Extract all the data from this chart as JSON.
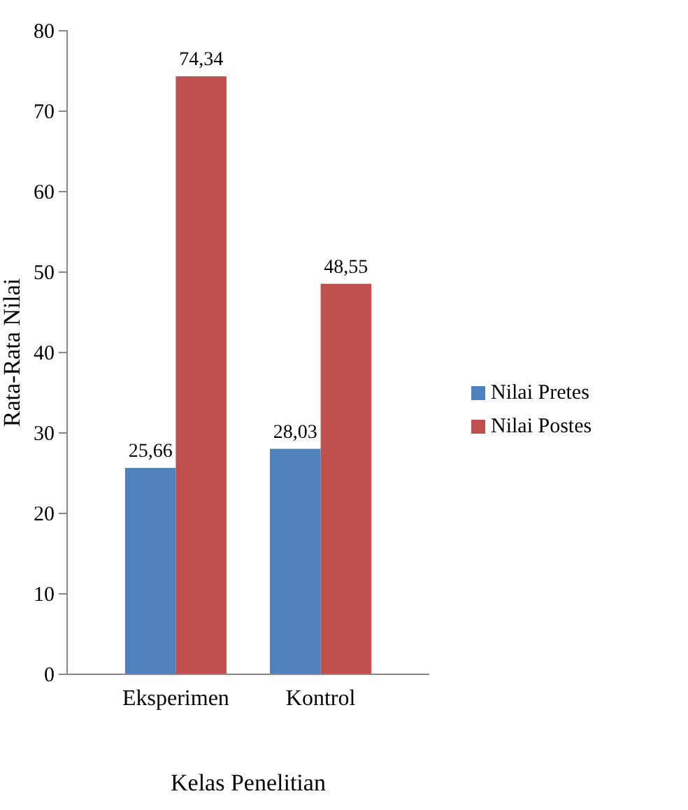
{
  "chart_data": {
    "type": "bar",
    "xlabel": "Kelas Penelitian",
    "ylabel": "Rata-Rata Nilai",
    "categories": [
      "Eksperimen",
      "Kontrol"
    ],
    "series": [
      {
        "name": "Nilai Pretes",
        "color": "#4f81bd",
        "values": [
          25.66,
          28.03
        ],
        "value_labels": [
          "25,66",
          "28,03"
        ]
      },
      {
        "name": "Nilai Postes",
        "color": "#c0504d",
        "values": [
          74.34,
          48.55
        ],
        "value_labels": [
          "74,34",
          "48,55"
        ]
      }
    ],
    "ylim": [
      0,
      80
    ],
    "yticks": [
      0,
      10,
      20,
      30,
      40,
      50,
      60,
      70,
      80
    ],
    "legend": "right",
    "grid": false
  }
}
